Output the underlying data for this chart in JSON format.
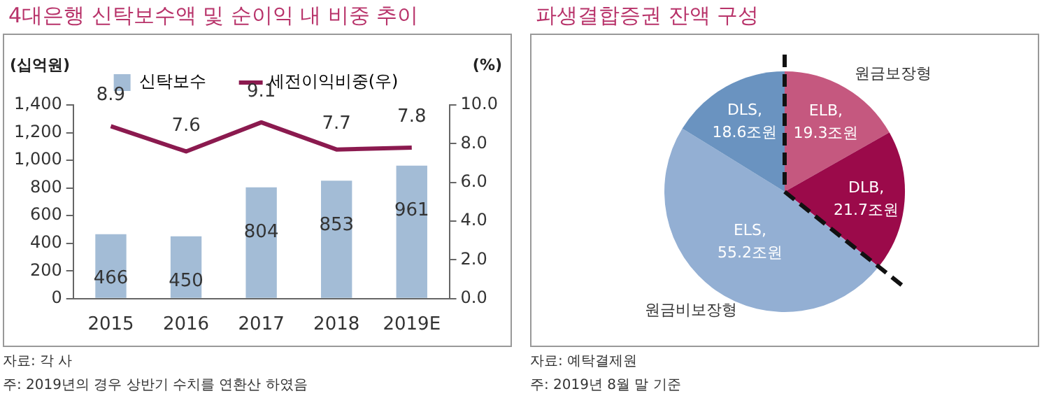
{
  "chart_data": [
    {
      "type": "bar",
      "title": "4대은행 신탁보수액 및 순이익 내 비중 추이",
      "ylabel": "(십억원)",
      "y2label": "(%)",
      "categories": [
        "2015",
        "2016",
        "2017",
        "2018",
        "2019E"
      ],
      "series": [
        {
          "name": "신탁보수",
          "type": "bar",
          "color": "#a3bcd6",
          "values": [
            466,
            450,
            804,
            853,
            961
          ]
        },
        {
          "name": "세전이익비중(우)",
          "type": "line",
          "axis": "y2",
          "color": "#8b1a4f",
          "values": [
            8.9,
            7.6,
            9.1,
            7.7,
            7.8
          ],
          "marker": "none"
        }
      ],
      "ylim": [
        0,
        1400
      ],
      "yticks": [
        {
          "value": 0,
          "label": "0"
        },
        {
          "value": 200,
          "label": "200"
        },
        {
          "value": 400,
          "label": "400"
        },
        {
          "value": 600,
          "label": "600"
        },
        {
          "value": 800,
          "label": "800"
        },
        {
          "value": 1000,
          "label": "1,000"
        },
        {
          "value": 1200,
          "label": "1,200"
        },
        {
          "value": 1400,
          "label": "1,400"
        }
      ],
      "y2lim": [
        0,
        10
      ],
      "y2ticks": [
        {
          "value": 0,
          "label": "0.0"
        },
        {
          "value": 2,
          "label": "2.0"
        },
        {
          "value": 4,
          "label": "4.0"
        },
        {
          "value": 6,
          "label": "6.0"
        },
        {
          "value": 8,
          "label": "8.0"
        },
        {
          "value": 10,
          "label": "10.0"
        }
      ],
      "data_labels": true,
      "grid": false,
      "legend": "top",
      "annotations": [
        "자료: 각 사",
        "주: 2019년의 경우 상반기 수치를 연환산 하였음"
      ]
    },
    {
      "type": "pie",
      "title": "파생결합증권 잔액 구성",
      "categories": [
        "ELB",
        "DLB",
        "ELS",
        "DLS"
      ],
      "values": [
        19.3,
        21.7,
        55.2,
        18.6
      ],
      "colors": [
        "#c5587f",
        "#9b0a4a",
        "#93afd3",
        "#6a93c0"
      ],
      "value_labels": [
        ",\n19.3조원",
        ",\n21.7조원",
        ",\n55.2조원",
        ",\n18.6조원"
      ],
      "legend": false,
      "annotations": [
        "원금보장형",
        "원금비보장형",
        "자료: 예탁결제원",
        "주: 2019년 8월 말 기준"
      ]
    }
  ]
}
